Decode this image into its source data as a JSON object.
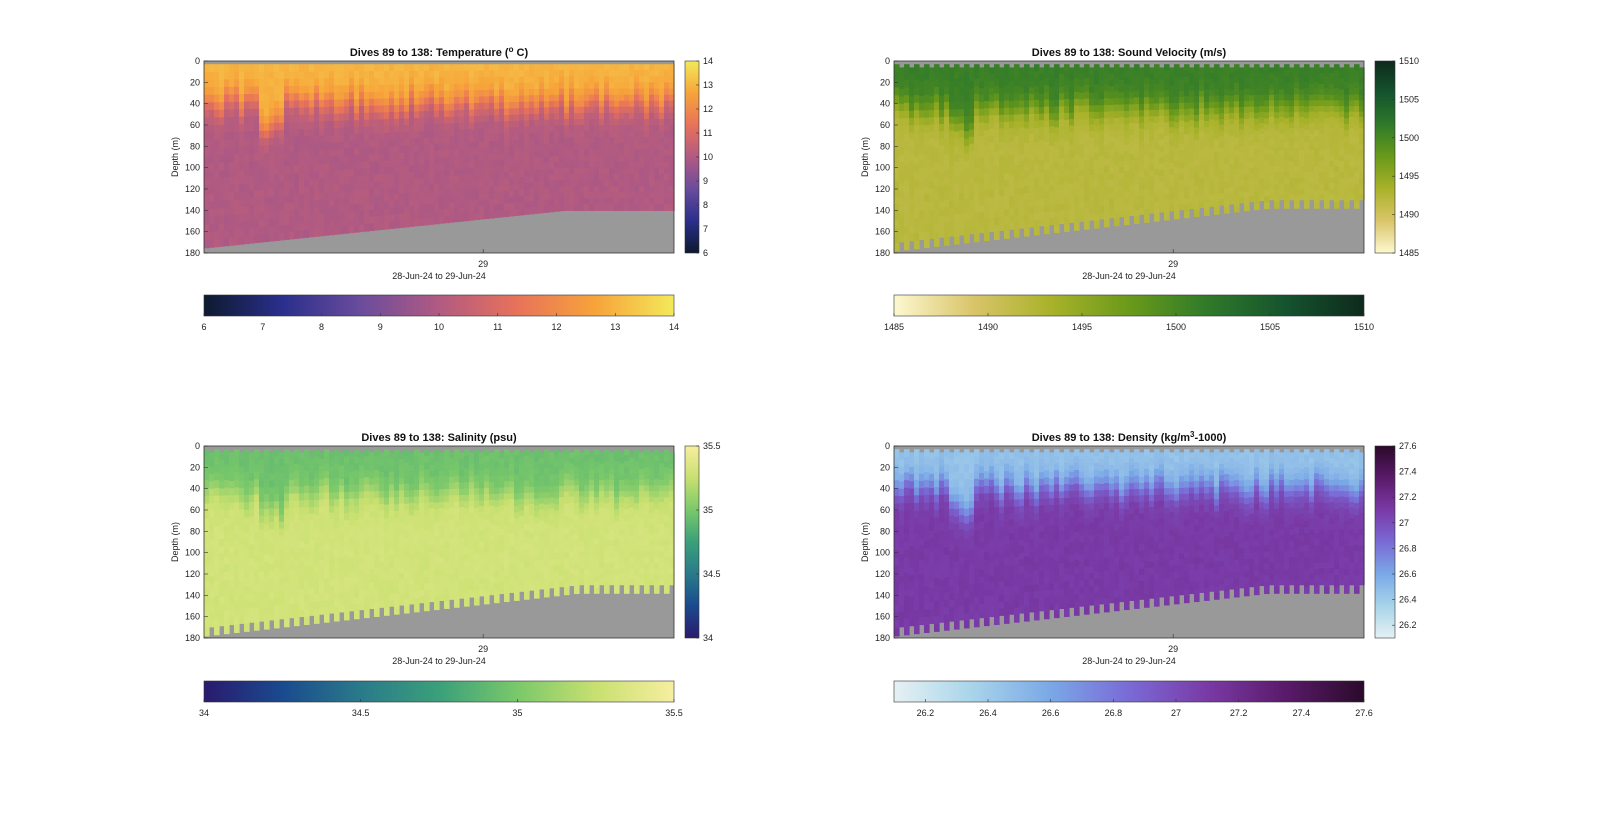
{
  "chart_data": [
    {
      "type": "heatmap",
      "title": "Dives 89 to 138: Temperature (",
      "title_sup": "o",
      "title_suffix": " C)",
      "ylabel": "Depth (m)",
      "xlabel": "28-Jun-24 to 29-Jun-24",
      "x_ticks": [
        "29"
      ],
      "y_ticks": [
        0,
        20,
        40,
        60,
        80,
        100,
        120,
        140,
        160,
        180
      ],
      "ylim": [
        0,
        180
      ],
      "y_reversed": true,
      "variable": "Temperature",
      "clim": [
        6,
        14
      ],
      "colorbar_ticks": [
        6,
        7,
        8,
        9,
        10,
        11,
        12,
        13,
        14
      ],
      "colormap": "thermal",
      "colormap_stops": [
        "#0d1a2e",
        "#2a2f8c",
        "#6a4c9c",
        "#b15a82",
        "#e8725a",
        "#f7a43a",
        "#f3e95a"
      ],
      "surface_value": 13.0,
      "mixed_layer_depth_m": 40,
      "deep_value": 10.0,
      "bottom_depth_start_m": 175,
      "bottom_depth_end_m": 140,
      "no_data_color": "#999999"
    },
    {
      "type": "heatmap",
      "title": "Dives 89 to 138: Sound Velocity (m/s)",
      "title_sup": "",
      "title_suffix": "",
      "ylabel": "Depth (m)",
      "xlabel": "28-Jun-24 to 29-Jun-24",
      "x_ticks": [
        "29"
      ],
      "y_ticks": [
        0,
        20,
        40,
        60,
        80,
        100,
        120,
        140,
        160,
        180
      ],
      "ylim": [
        0,
        180
      ],
      "y_reversed": true,
      "variable": "Sound Velocity",
      "clim": [
        1485,
        1510
      ],
      "colorbar_ticks": [
        1485,
        1490,
        1495,
        1500,
        1505,
        1510
      ],
      "colormap": "speed",
      "colormap_stops": [
        "#fdf8d0",
        "#d9c56a",
        "#a9b22a",
        "#6a9a1a",
        "#2f7a2a",
        "#15532e",
        "#0e2a1c"
      ],
      "surface_value": 1501,
      "mixed_layer_depth_m": 45,
      "deep_value": 1492,
      "bottom_depth_start_m": 170,
      "bottom_depth_end_m": 130,
      "no_data_color": "#999999"
    },
    {
      "type": "heatmap",
      "title": "Dives 89 to 138: Salinity (psu)",
      "title_sup": "",
      "title_suffix": "",
      "ylabel": "Depth (m)",
      "xlabel": "28-Jun-24 to 29-Jun-24",
      "x_ticks": [
        "29"
      ],
      "y_ticks": [
        0,
        20,
        40,
        60,
        80,
        100,
        120,
        140,
        160,
        180
      ],
      "ylim": [
        0,
        180
      ],
      "y_reversed": true,
      "variable": "Salinity",
      "clim": [
        34,
        35.5
      ],
      "colorbar_ticks": [
        34,
        34.5,
        35,
        35.5
      ],
      "colormap": "haline",
      "colormap_stops": [
        "#2a1a6e",
        "#1a4a8e",
        "#2a7a8a",
        "#3aa07a",
        "#7ac86a",
        "#c8e070",
        "#f7eea0"
      ],
      "surface_value": 34.95,
      "mixed_layer_depth_m": 45,
      "deep_value": 35.3,
      "bottom_depth_start_m": 170,
      "bottom_depth_end_m": 130,
      "no_data_color": "#999999"
    },
    {
      "type": "heatmap",
      "title": "Dives 89 to 138: Density (kg/m",
      "title_sup": "3",
      "title_suffix": "-1000)",
      "ylabel": "Depth (m)",
      "xlabel": "28-Jun-24 to 29-Jun-24",
      "x_ticks": [
        "29"
      ],
      "y_ticks": [
        0,
        20,
        40,
        60,
        80,
        100,
        120,
        140,
        160,
        180
      ],
      "ylim": [
        0,
        180
      ],
      "y_reversed": true,
      "variable": "Density",
      "clim": [
        26.1,
        27.6
      ],
      "colorbar_ticks": [
        26.2,
        26.4,
        26.6,
        26.8,
        27,
        27.2,
        27.4,
        27.6
      ],
      "colormap": "dense",
      "colormap_stops": [
        "#e6f1f3",
        "#a8d4ea",
        "#7aa8e6",
        "#7a6ad6",
        "#7a3aa6",
        "#5a1a6a",
        "#2a0a2a"
      ],
      "surface_value": 26.45,
      "mixed_layer_depth_m": 40,
      "deep_value": 27.1,
      "bottom_depth_start_m": 170,
      "bottom_depth_end_m": 130,
      "no_data_color": "#999999"
    }
  ]
}
